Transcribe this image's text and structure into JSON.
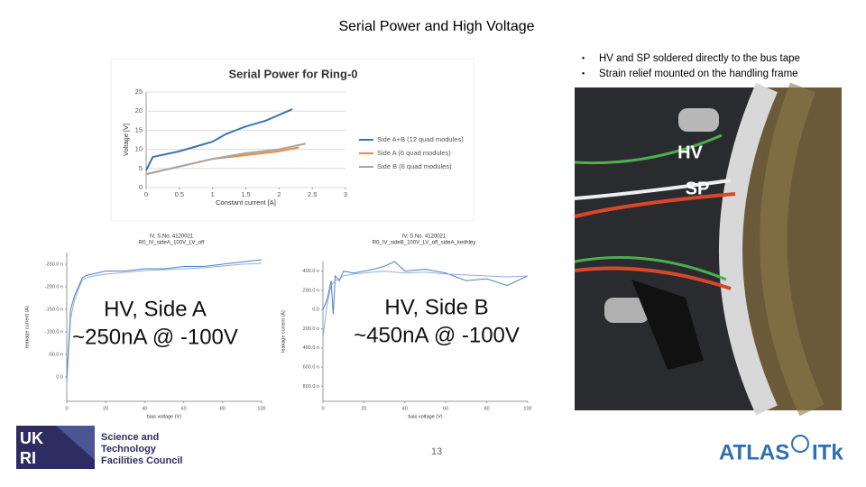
{
  "title": "Serial Power and High Voltage",
  "bullets": [
    "HV and SP soldered directly to the bus tape",
    "Strain relief mounted on the handling frame"
  ],
  "charts": {
    "sp": {
      "type": "line",
      "title": "Serial Power for Ring-0",
      "xlabel": "Constant current [A]",
      "ylabel": "Voltage [V]",
      "xlim": [
        0,
        3
      ],
      "ylim": [
        0,
        25
      ],
      "xticks": [
        0,
        0.5,
        1,
        1.5,
        2,
        2.5,
        3
      ],
      "yticks": [
        0,
        5,
        10,
        15,
        20,
        25
      ],
      "grid": true,
      "series": [
        {
          "name": "Side A+B (12 quad modules)",
          "color": "#3b73b4",
          "x": [
            0,
            0.1,
            0.5,
            0.8,
            1,
            1.2,
            1.5,
            1.8,
            2,
            2.2
          ],
          "values": [
            4.5,
            8,
            9.5,
            11,
            12,
            14,
            16,
            17.5,
            19,
            20.5
          ]
        },
        {
          "name": "Side A (6 quad modules)",
          "color": "#ee8a3c",
          "x": [
            0,
            0.5,
            1,
            1.5,
            2,
            2.3
          ],
          "values": [
            3.5,
            5.5,
            7.5,
            8.5,
            9.5,
            10.5
          ]
        },
        {
          "name": "Side B (6 quad modules)",
          "color": "#a5a5a5",
          "x": [
            0,
            0.5,
            1,
            1.5,
            2,
            2.4
          ],
          "values": [
            3.5,
            5.5,
            7.5,
            9,
            10,
            11.5
          ]
        }
      ]
    },
    "hva": {
      "type": "line",
      "title": "IV, S.No. 4120021",
      "subtitle": "R0_IV_sideA_100V_LV_off",
      "annotation": [
        "HV, Side A",
        "~250nA @ -100V"
      ],
      "xlabel": "bias voltage (V)",
      "ylabel": "leakage current (A)",
      "xlim": [
        0,
        100
      ],
      "ylim": [
        54,
        -276
      ],
      "xticks": [
        0,
        20,
        40,
        60,
        80,
        100
      ],
      "yticks": [
        {
          "value": -250,
          "label": "-250.0 n"
        },
        {
          "value": -200,
          "label": "-200.0 n"
        },
        {
          "value": -150,
          "label": "-150.0 n"
        },
        {
          "value": -100,
          "label": "-100.0 n"
        },
        {
          "value": -50,
          "label": "-50.0 n"
        },
        {
          "value": 0,
          "label": "0.0"
        }
      ],
      "grid": false,
      "series": [
        {
          "color": "#4f7fc0",
          "x": [
            0,
            2,
            4,
            6,
            8,
            10,
            15,
            20,
            30,
            40,
            50,
            60,
            70,
            80,
            90,
            100
          ],
          "values": [
            0,
            -150,
            -180,
            -200,
            -220,
            -225,
            -230,
            -235,
            -235,
            -240,
            -240,
            -245,
            -245,
            -250,
            -255,
            -260
          ]
        },
        {
          "color": "#8fb0dc",
          "x": [
            0,
            2,
            4,
            6,
            8,
            10,
            15,
            20,
            30,
            40,
            50,
            60,
            70,
            80,
            90,
            100
          ],
          "values": [
            20,
            -130,
            -170,
            -195,
            -215,
            -220,
            -225,
            -228,
            -232,
            -236,
            -238,
            -240,
            -242,
            -246,
            -250,
            -252
          ]
        }
      ]
    },
    "hvb": {
      "type": "line",
      "title": "IV, S.No. 4120021",
      "subtitle": "R0_IV_sideB_100V_LV_off_sideA_keithley",
      "annotation": [
        "HV, Side B",
        "~450nA @ -100V"
      ],
      "xlabel": "bias voltage (V)",
      "ylabel": "leakage current (A)",
      "xlim": [
        0,
        100
      ],
      "ylim": [
        957,
        -500
      ],
      "xticks": [
        0,
        20,
        40,
        60,
        80,
        100
      ],
      "yticks": [
        {
          "value": -400,
          "label": "-400.0 n"
        },
        {
          "value": -200,
          "label": "-200.0 n"
        },
        {
          "value": 0,
          "label": "0.0"
        },
        {
          "value": 200,
          "label": "200.0 n"
        },
        {
          "value": 400,
          "label": "400.0 n"
        },
        {
          "value": 600,
          "label": "600.0 n"
        },
        {
          "value": 800,
          "label": "800.0 n"
        }
      ],
      "grid": false,
      "series": [
        {
          "color": "#4f7fc0",
          "x": [
            0,
            2,
            4,
            5,
            6,
            8,
            10,
            15,
            20,
            25,
            30,
            35,
            40,
            50,
            60,
            70,
            80,
            90,
            100
          ],
          "values": [
            0,
            -100,
            -300,
            50,
            -350,
            -300,
            -400,
            -380,
            -400,
            -420,
            -450,
            -500,
            -400,
            -420,
            -380,
            -300,
            -320,
            -250,
            -350
          ]
        },
        {
          "color": "#8fb0dc",
          "x": [
            0,
            2,
            4,
            6,
            8,
            10,
            15,
            20,
            30,
            40,
            50,
            60,
            70,
            80,
            90,
            100
          ],
          "values": [
            300,
            -50,
            -250,
            -300,
            -320,
            -350,
            -370,
            -380,
            -400,
            -380,
            -390,
            -370,
            -360,
            -350,
            -340,
            -350
          ]
        }
      ]
    }
  },
  "photo": {
    "labels": [
      "HV",
      "SP"
    ]
  },
  "page_number": "13",
  "logos": {
    "ukri": [
      "UK",
      "RI"
    ],
    "stfc": [
      "Science and",
      "Technology",
      "Facilities Council"
    ],
    "atlas": "ATLAS",
    "itk": "ITk"
  }
}
